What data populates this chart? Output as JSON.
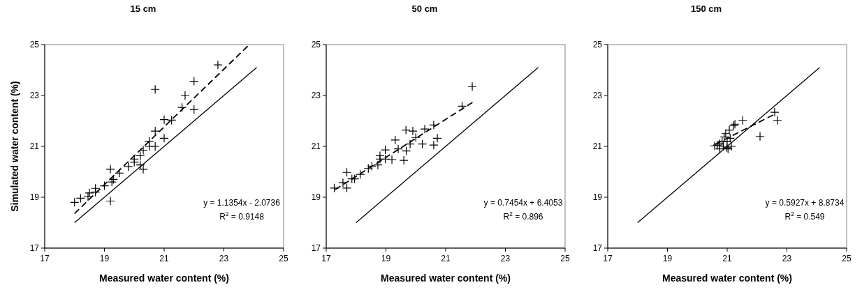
{
  "chart_data": [
    {
      "type": "scatter",
      "title": "15 cm",
      "xlabel": "Measured water content (%)",
      "ylabel": "Simulated water content (%)",
      "xlim": [
        17,
        25
      ],
      "ylim": [
        17,
        25
      ],
      "xticks": [
        17,
        19,
        21,
        23,
        25
      ],
      "yticks": [
        17,
        19,
        21,
        23,
        25
      ],
      "grid": false,
      "marker": "cross",
      "annotations": [
        "y = 1.1354x - 2.0736",
        "R$^{2}$ = 0.9148"
      ],
      "series": [
        {
          "type": "scatter",
          "color": "#000000",
          "x": [
            18.0,
            18.2,
            18.45,
            18.5,
            18.7,
            18.7,
            19.0,
            19.2,
            19.2,
            19.25,
            19.3,
            19.5,
            19.8,
            20.0,
            20.0,
            20.2,
            20.2,
            20.3,
            20.3,
            20.5,
            20.5,
            20.7,
            20.7,
            20.7,
            21.0,
            21.0,
            21.25,
            21.6,
            21.7,
            22.0,
            22.0,
            22.8
          ],
          "values": [
            18.8,
            18.96,
            19.02,
            19.17,
            19.35,
            19.2,
            19.45,
            20.1,
            18.85,
            19.6,
            19.7,
            19.95,
            20.2,
            20.5,
            20.38,
            20.63,
            20.27,
            20.1,
            20.85,
            21.2,
            21.0,
            21.0,
            21.6,
            23.24,
            22.05,
            21.32,
            22.03,
            22.53,
            23.0,
            23.56,
            22.45,
            24.2
          ]
        },
        {
          "type": "line",
          "color": "#000000",
          "line_style": "solid",
          "marker": "none",
          "x": [
            18,
            24.1
          ],
          "values": [
            18,
            24.1
          ]
        },
        {
          "type": "line",
          "color": "#000000",
          "line_style": "dashed",
          "marker": "none",
          "x": [
            18,
            23.85
          ],
          "values": [
            18.36,
            25.0
          ]
        }
      ]
    },
    {
      "type": "scatter",
      "title": "50 cm",
      "xlabel": "Measured water content (%)",
      "xlim": [
        17,
        25
      ],
      "ylim": [
        17,
        25
      ],
      "xticks": [
        17,
        19,
        21,
        23,
        25
      ],
      "yticks": [
        17,
        19,
        21,
        23,
        25
      ],
      "grid": false,
      "marker": "cross",
      "annotations": [
        "y = 0.7454x + 6.4053",
        "R$^{2}$ = 0.896"
      ],
      "series": [
        {
          "type": "scatter",
          "color": "#000000",
          "x": [
            17.27,
            17.56,
            17.69,
            17.69,
            17.86,
            17.95,
            18.14,
            18.41,
            18.53,
            18.73,
            18.8,
            18.8,
            18.98,
            18.98,
            19.2,
            19.31,
            19.41,
            19.6,
            19.67,
            19.68,
            19.81,
            19.9,
            20.0,
            20.22,
            20.3,
            20.6,
            20.6,
            20.72,
            21.55,
            21.89
          ],
          "values": [
            19.36,
            19.57,
            19.36,
            19.98,
            19.72,
            19.72,
            19.9,
            20.13,
            20.22,
            20.27,
            20.63,
            20.5,
            20.86,
            20.5,
            20.48,
            21.25,
            20.9,
            20.45,
            21.64,
            20.82,
            21.09,
            21.6,
            21.35,
            21.09,
            21.68,
            21.84,
            21.05,
            21.32,
            22.58,
            23.35
          ]
        },
        {
          "type": "line",
          "color": "#000000",
          "line_style": "solid",
          "marker": "none",
          "x": [
            18,
            24.1
          ],
          "values": [
            18,
            24.1
          ]
        },
        {
          "type": "line",
          "color": "#000000",
          "line_style": "dashed",
          "marker": "none",
          "x": [
            17.3,
            21.9
          ],
          "values": [
            19.3,
            22.73
          ]
        }
      ]
    },
    {
      "type": "scatter",
      "title": "150 cm",
      "xlabel": "Measured water content (%)",
      "xlim": [
        17,
        25
      ],
      "ylim": [
        17,
        25
      ],
      "xticks": [
        17,
        19,
        21,
        23,
        25
      ],
      "yticks": [
        17,
        19,
        21,
        23,
        25
      ],
      "grid": false,
      "marker": "cross",
      "annotations": [
        "y = 0.5927x + 8.8734",
        "R$^{2}$ = 0.549"
      ],
      "series": [
        {
          "type": "scatter",
          "color": "#000000",
          "x": [
            20.58,
            20.67,
            20.75,
            20.75,
            20.83,
            20.87,
            20.9,
            20.95,
            20.99,
            21.0,
            21.03,
            21.07,
            21.1,
            21.14,
            21.22,
            21.26,
            21.52,
            22.1,
            22.59,
            22.68
          ],
          "values": [
            21.02,
            21.05,
            21.1,
            20.9,
            21.2,
            21.0,
            21.37,
            21.5,
            20.95,
            21.18,
            20.9,
            21.64,
            21.32,
            21.0,
            21.82,
            21.87,
            22.02,
            21.39,
            22.34,
            22.02
          ]
        },
        {
          "type": "line",
          "color": "#000000",
          "line_style": "solid",
          "marker": "none",
          "x": [
            18,
            24.1
          ],
          "values": [
            18,
            24.1
          ]
        },
        {
          "type": "line",
          "color": "#000000",
          "line_style": "dashed",
          "marker": "none",
          "x": [
            20.6,
            22.6
          ],
          "values": [
            21.08,
            22.27
          ]
        }
      ]
    }
  ]
}
